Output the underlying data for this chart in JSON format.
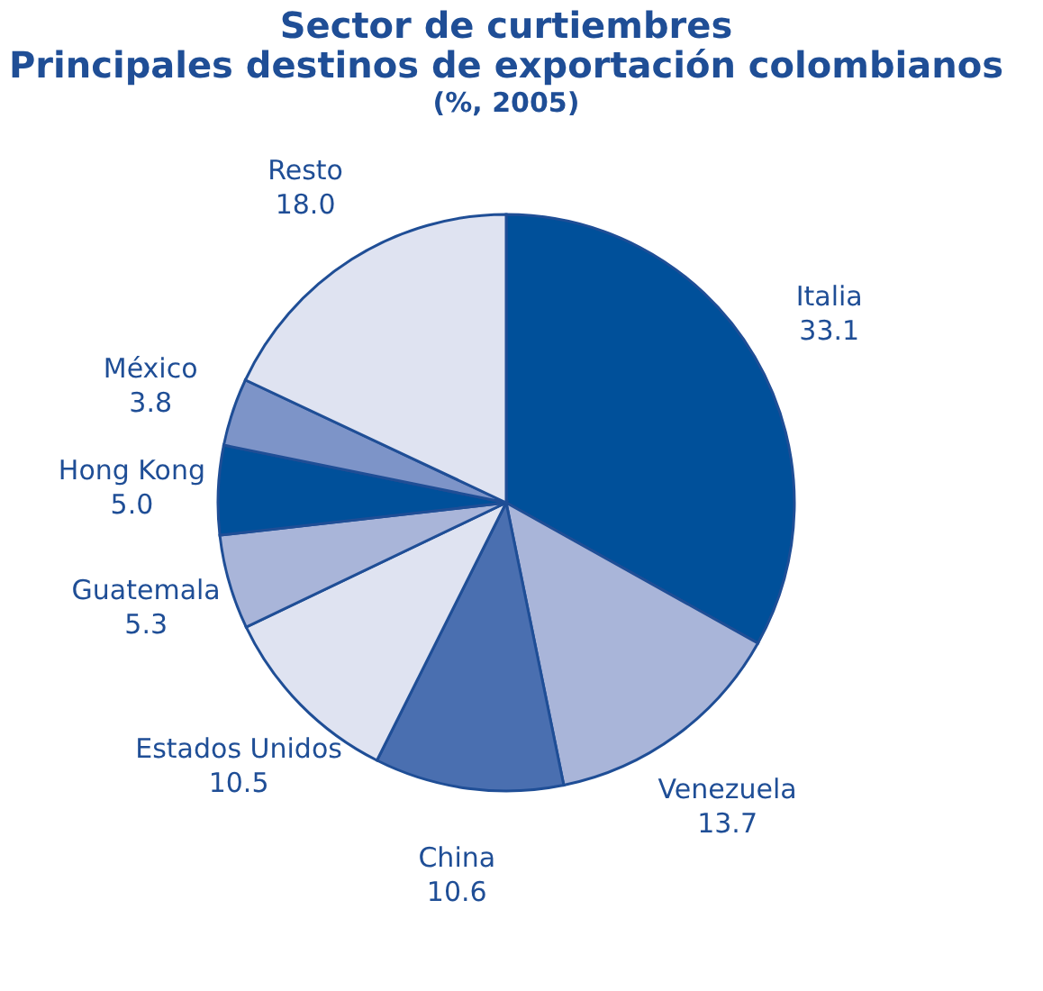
{
  "chart_data": {
    "type": "pie",
    "title": "Sector de curtiembres\nPrincipales destinos de exportación colombianos",
    "subtitle": "(%, 2005)",
    "categories": [
      "Italia",
      "Venezuela",
      "China",
      "Estados Unidos",
      "Guatemala",
      "Hong Kong",
      "México",
      "Resto"
    ],
    "values": [
      33.1,
      13.7,
      10.6,
      10.5,
      5.3,
      5.0,
      3.8,
      18.0
    ],
    "colors": [
      "#00509a",
      "#a9b5d9",
      "#4a6fb0",
      "#dfe3f1",
      "#a9b5d9",
      "#00509a",
      "#7d94c8",
      "#dfe3f1"
    ],
    "value_labels": [
      "33.1",
      "13.7",
      "10.6",
      "10.5",
      "5.3",
      "5.0",
      "3.8",
      "18.0"
    ],
    "legend": false
  }
}
